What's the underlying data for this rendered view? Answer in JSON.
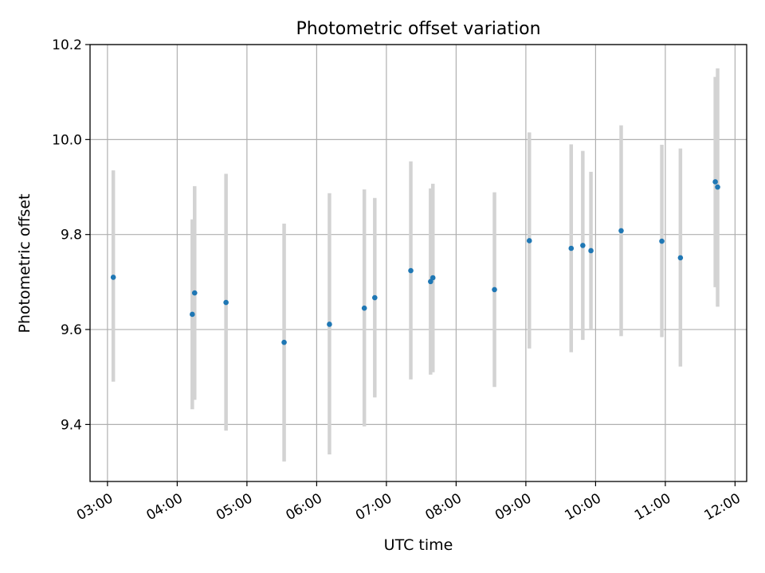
{
  "chart_data": {
    "type": "scatter",
    "title": "Photometric offset variation",
    "xlabel": "UTC time",
    "ylabel": "Photometric offset",
    "xlim": [
      "02:45",
      "12:10"
    ],
    "ylim": [
      9.28,
      10.2
    ],
    "x_ticks": [
      "03:00",
      "04:00",
      "05:00",
      "06:00",
      "07:00",
      "08:00",
      "09:00",
      "10:00",
      "11:00",
      "12:00"
    ],
    "y_ticks": [
      "9.4",
      "9.6",
      "9.8",
      "10.0",
      "10.2"
    ],
    "grid": true,
    "colors": {
      "point": "#1f77b4",
      "errorbar": "#d3d3d3",
      "grid": "#b0b0b0"
    },
    "series": [
      {
        "points": [
          {
            "x": "03:05",
            "y": 9.71,
            "lo": 9.49,
            "hi": 9.935
          },
          {
            "x": "04:13",
            "y": 9.632,
            "lo": 9.432,
            "hi": 9.832
          },
          {
            "x": "04:15",
            "y": 9.677,
            "lo": 9.452,
            "hi": 9.902
          },
          {
            "x": "04:42",
            "y": 9.657,
            "lo": 9.387,
            "hi": 9.928
          },
          {
            "x": "05:32",
            "y": 9.573,
            "lo": 9.322,
            "hi": 9.823
          },
          {
            "x": "06:11",
            "y": 9.611,
            "lo": 9.337,
            "hi": 9.887
          },
          {
            "x": "06:41",
            "y": 9.645,
            "lo": 9.396,
            "hi": 9.895
          },
          {
            "x": "06:50",
            "y": 9.667,
            "lo": 9.457,
            "hi": 9.877
          },
          {
            "x": "07:21",
            "y": 9.724,
            "lo": 9.495,
            "hi": 9.954
          },
          {
            "x": "07:38",
            "y": 9.701,
            "lo": 9.505,
            "hi": 9.897
          },
          {
            "x": "07:40",
            "y": 9.709,
            "lo": 9.51,
            "hi": 9.907
          },
          {
            "x": "08:33",
            "y": 9.684,
            "lo": 9.479,
            "hi": 9.889
          },
          {
            "x": "09:03",
            "y": 9.787,
            "lo": 9.56,
            "hi": 10.015
          },
          {
            "x": "09:39",
            "y": 9.771,
            "lo": 9.552,
            "hi": 9.99
          },
          {
            "x": "09:49",
            "y": 9.777,
            "lo": 9.578,
            "hi": 9.976
          },
          {
            "x": "09:56",
            "y": 9.766,
            "lo": 9.6,
            "hi": 9.932
          },
          {
            "x": "10:22",
            "y": 9.808,
            "lo": 9.586,
            "hi": 10.03
          },
          {
            "x": "10:57",
            "y": 9.786,
            "lo": 9.584,
            "hi": 9.989
          },
          {
            "x": "11:13",
            "y": 9.751,
            "lo": 9.522,
            "hi": 9.981
          },
          {
            "x": "11:43",
            "y": 9.911,
            "lo": 9.689,
            "hi": 10.132
          },
          {
            "x": "11:45",
            "y": 9.9,
            "lo": 9.648,
            "hi": 10.15
          }
        ]
      }
    ]
  }
}
